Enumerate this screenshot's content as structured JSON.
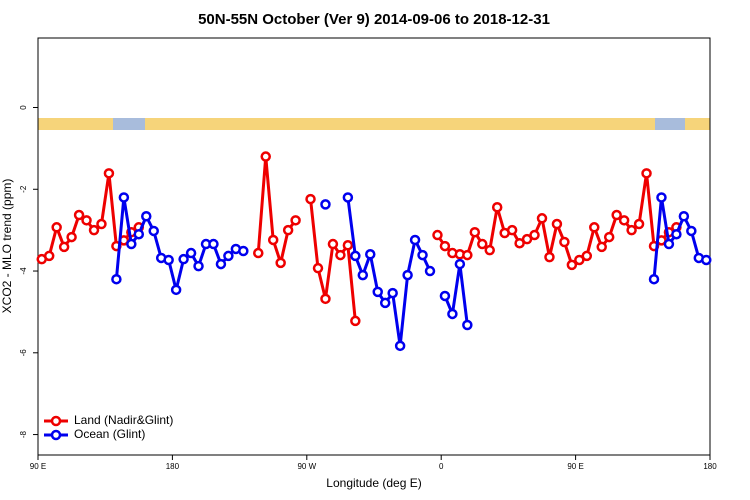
{
  "chart_data": {
    "type": "line",
    "title": "50N-55N October (Ver 9)   2014-09-06 to 2018-12-31",
    "x_label": "Longitude (deg E)",
    "y_label": "XCO2 - MLO trend (ppm)",
    "xlim": [
      90,
      540
    ],
    "xticks": [
      {
        "value": 90,
        "label": "90 E"
      },
      {
        "value": 180,
        "label": "180"
      },
      {
        "value": 270,
        "label": "90 W"
      },
      {
        "value": 360,
        "label": "0"
      },
      {
        "value": 450,
        "label": "90 E"
      },
      {
        "value": 540,
        "label": "180"
      }
    ],
    "ylim": [
      -8.5,
      1.7
    ],
    "yticks": [
      0,
      -2,
      -4,
      -6,
      -8
    ],
    "legend": "bottom-left",
    "x": [
      92.5,
      97.5,
      102.5,
      107.5,
      112.5,
      117.5,
      122.5,
      127.5,
      132.5,
      137.5,
      142.5,
      147.5,
      152.5,
      157.5,
      162.5,
      167.5,
      172.5,
      177.5,
      182.5,
      187.5,
      192.5,
      197.5,
      202.5,
      207.5,
      212.5,
      217.5,
      222.5,
      227.5,
      232.5,
      237.5,
      242.5,
      247.5,
      252.5,
      257.5,
      262.5,
      267.5,
      272.5,
      277.5,
      282.5,
      287.5,
      292.5,
      297.5,
      302.5,
      307.5,
      312.5,
      317.5,
      322.5,
      327.5,
      332.5,
      337.5,
      342.5,
      347.5,
      352.5,
      357.5,
      362.5,
      367.5,
      372.5,
      377.5,
      382.5,
      387.5,
      392.5,
      397.5,
      402.5,
      407.5,
      412.5,
      417.5,
      422.5,
      427.5,
      432.5,
      437.5,
      442.5,
      447.5,
      452.5,
      457.5,
      462.5,
      467.5,
      472.5,
      477.5,
      482.5,
      487.5,
      492.5,
      497.5,
      502.5,
      507.5,
      512.5,
      517.5,
      522.5,
      527.5,
      532.5,
      537.5
    ],
    "series": [
      {
        "name": "Land (Nadir&Glint)",
        "color": "#ee0000",
        "values": [
          -3.71,
          -3.63,
          -2.93,
          -3.41,
          -3.17,
          -2.63,
          -2.76,
          -3.0,
          -2.85,
          -1.61,
          -3.39,
          -3.25,
          -3.05,
          -2.93,
          null,
          null,
          null,
          null,
          null,
          null,
          null,
          null,
          null,
          null,
          null,
          null,
          null,
          null,
          null,
          -3.56,
          -1.2,
          -3.24,
          -3.8,
          -3.0,
          -2.76,
          null,
          -2.24,
          -3.93,
          -4.68,
          -3.34,
          -3.61,
          -3.37,
          -5.22,
          null,
          null,
          null,
          null,
          null,
          null,
          null,
          null,
          null,
          null,
          -3.12,
          -3.39,
          -3.56,
          -3.59,
          -3.61,
          -3.05,
          -3.34,
          -3.49,
          -2.44,
          -3.07,
          -3.0,
          -3.32,
          -3.22,
          -3.12,
          -2.71,
          -3.66,
          -2.85,
          -3.29,
          -3.85,
          -3.73,
          -3.63,
          -2.93,
          -3.41,
          -3.17,
          -2.63,
          -2.76,
          -3.0,
          -2.85,
          -1.61,
          -3.39,
          -3.25,
          -3.05,
          -2.93,
          null,
          null,
          null,
          null
        ]
      },
      {
        "name": "Ocean (Glint)",
        "color": "#0000ee",
        "values": [
          null,
          null,
          null,
          null,
          null,
          null,
          null,
          null,
          null,
          null,
          -4.2,
          -2.2,
          -3.34,
          -3.1,
          -2.66,
          -3.02,
          -3.68,
          -3.73,
          -4.46,
          -3.71,
          -3.56,
          -3.88,
          -3.34,
          -3.34,
          -3.83,
          -3.63,
          -3.46,
          -3.51,
          null,
          null,
          null,
          null,
          null,
          null,
          null,
          null,
          null,
          null,
          -2.37,
          null,
          null,
          -2.2,
          -3.63,
          -4.1,
          -3.59,
          -4.51,
          -4.78,
          -4.54,
          -5.83,
          -4.1,
          -3.24,
          -3.61,
          -4.0,
          null,
          -4.61,
          -5.05,
          -3.83,
          -5.32,
          null,
          null,
          null,
          null,
          null,
          null,
          null,
          null,
          null,
          null,
          null,
          null,
          null,
          null,
          null,
          null,
          null,
          null,
          null,
          null,
          null,
          null,
          null,
          null,
          -4.2,
          -2.2,
          -3.34,
          -3.1,
          -2.66,
          -3.02,
          -3.68,
          -3.73
        ]
      }
    ]
  }
}
